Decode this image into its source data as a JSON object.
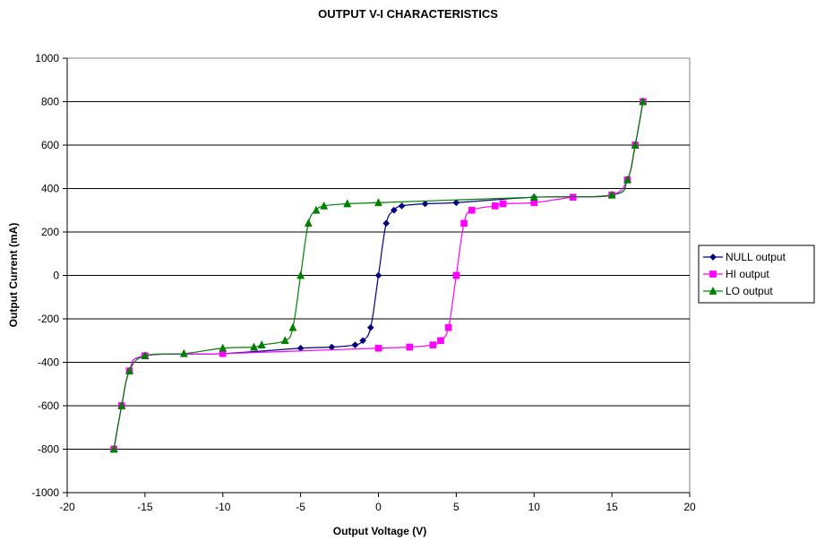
{
  "chart_data": {
    "type": "line",
    "title": "OUTPUT V-I CHARACTERISTICS",
    "xlabel": "Output Voltage (V)",
    "ylabel": "Output Current (mA)",
    "xlim": [
      -20,
      20
    ],
    "ylim": [
      -1000,
      1000
    ],
    "xticks": [
      -20,
      -15,
      -10,
      -5,
      0,
      5,
      10,
      15,
      20
    ],
    "yticks": [
      -1000,
      -800,
      -600,
      -400,
      -200,
      0,
      200,
      400,
      600,
      800,
      1000
    ],
    "grid": "horizontal",
    "legend_position": "right",
    "series": [
      {
        "name": "NULL output",
        "color": "#000080",
        "marker": "diamond",
        "points": [
          [
            -17,
            -800
          ],
          [
            -16.5,
            -600
          ],
          [
            -16,
            -440
          ],
          [
            -15,
            -370
          ],
          [
            -10,
            -360
          ],
          [
            -5,
            -335
          ],
          [
            -3,
            -330
          ],
          [
            -1.5,
            -320
          ],
          [
            -1,
            -300
          ],
          [
            -0.5,
            -240
          ],
          [
            0,
            0
          ],
          [
            0.5,
            240
          ],
          [
            1,
            300
          ],
          [
            1.5,
            320
          ],
          [
            3,
            330
          ],
          [
            5,
            335
          ],
          [
            10,
            360
          ],
          [
            15,
            370
          ],
          [
            16,
            440
          ],
          [
            16.5,
            600
          ],
          [
            17,
            800
          ]
        ]
      },
      {
        "name": "HI output",
        "color": "#ff00ff",
        "marker": "square",
        "points": [
          [
            -17,
            -800
          ],
          [
            -16.5,
            -600
          ],
          [
            -16,
            -440
          ],
          [
            -15,
            -370
          ],
          [
            -10,
            -360
          ],
          [
            0,
            -335
          ],
          [
            2,
            -330
          ],
          [
            3.5,
            -320
          ],
          [
            4,
            -300
          ],
          [
            4.5,
            -240
          ],
          [
            5,
            0
          ],
          [
            5.5,
            240
          ],
          [
            6,
            300
          ],
          [
            7.5,
            320
          ],
          [
            8,
            330
          ],
          [
            10,
            335
          ],
          [
            12.5,
            360
          ],
          [
            15,
            370
          ],
          [
            16,
            440
          ],
          [
            16.5,
            600
          ],
          [
            17,
            800
          ]
        ]
      },
      {
        "name": "LO output",
        "color": "#008000",
        "marker": "triangle",
        "points": [
          [
            -17,
            -800
          ],
          [
            -16.5,
            -600
          ],
          [
            -16,
            -440
          ],
          [
            -15,
            -370
          ],
          [
            -12.5,
            -360
          ],
          [
            -10,
            -335
          ],
          [
            -8,
            -330
          ],
          [
            -7.5,
            -320
          ],
          [
            -6,
            -300
          ],
          [
            -5.5,
            -240
          ],
          [
            -5,
            0
          ],
          [
            -4.5,
            240
          ],
          [
            -4,
            300
          ],
          [
            -3.5,
            320
          ],
          [
            -2,
            330
          ],
          [
            0,
            335
          ],
          [
            10,
            360
          ],
          [
            15,
            370
          ],
          [
            16,
            440
          ],
          [
            16.5,
            600
          ],
          [
            17,
            800
          ]
        ]
      }
    ]
  }
}
